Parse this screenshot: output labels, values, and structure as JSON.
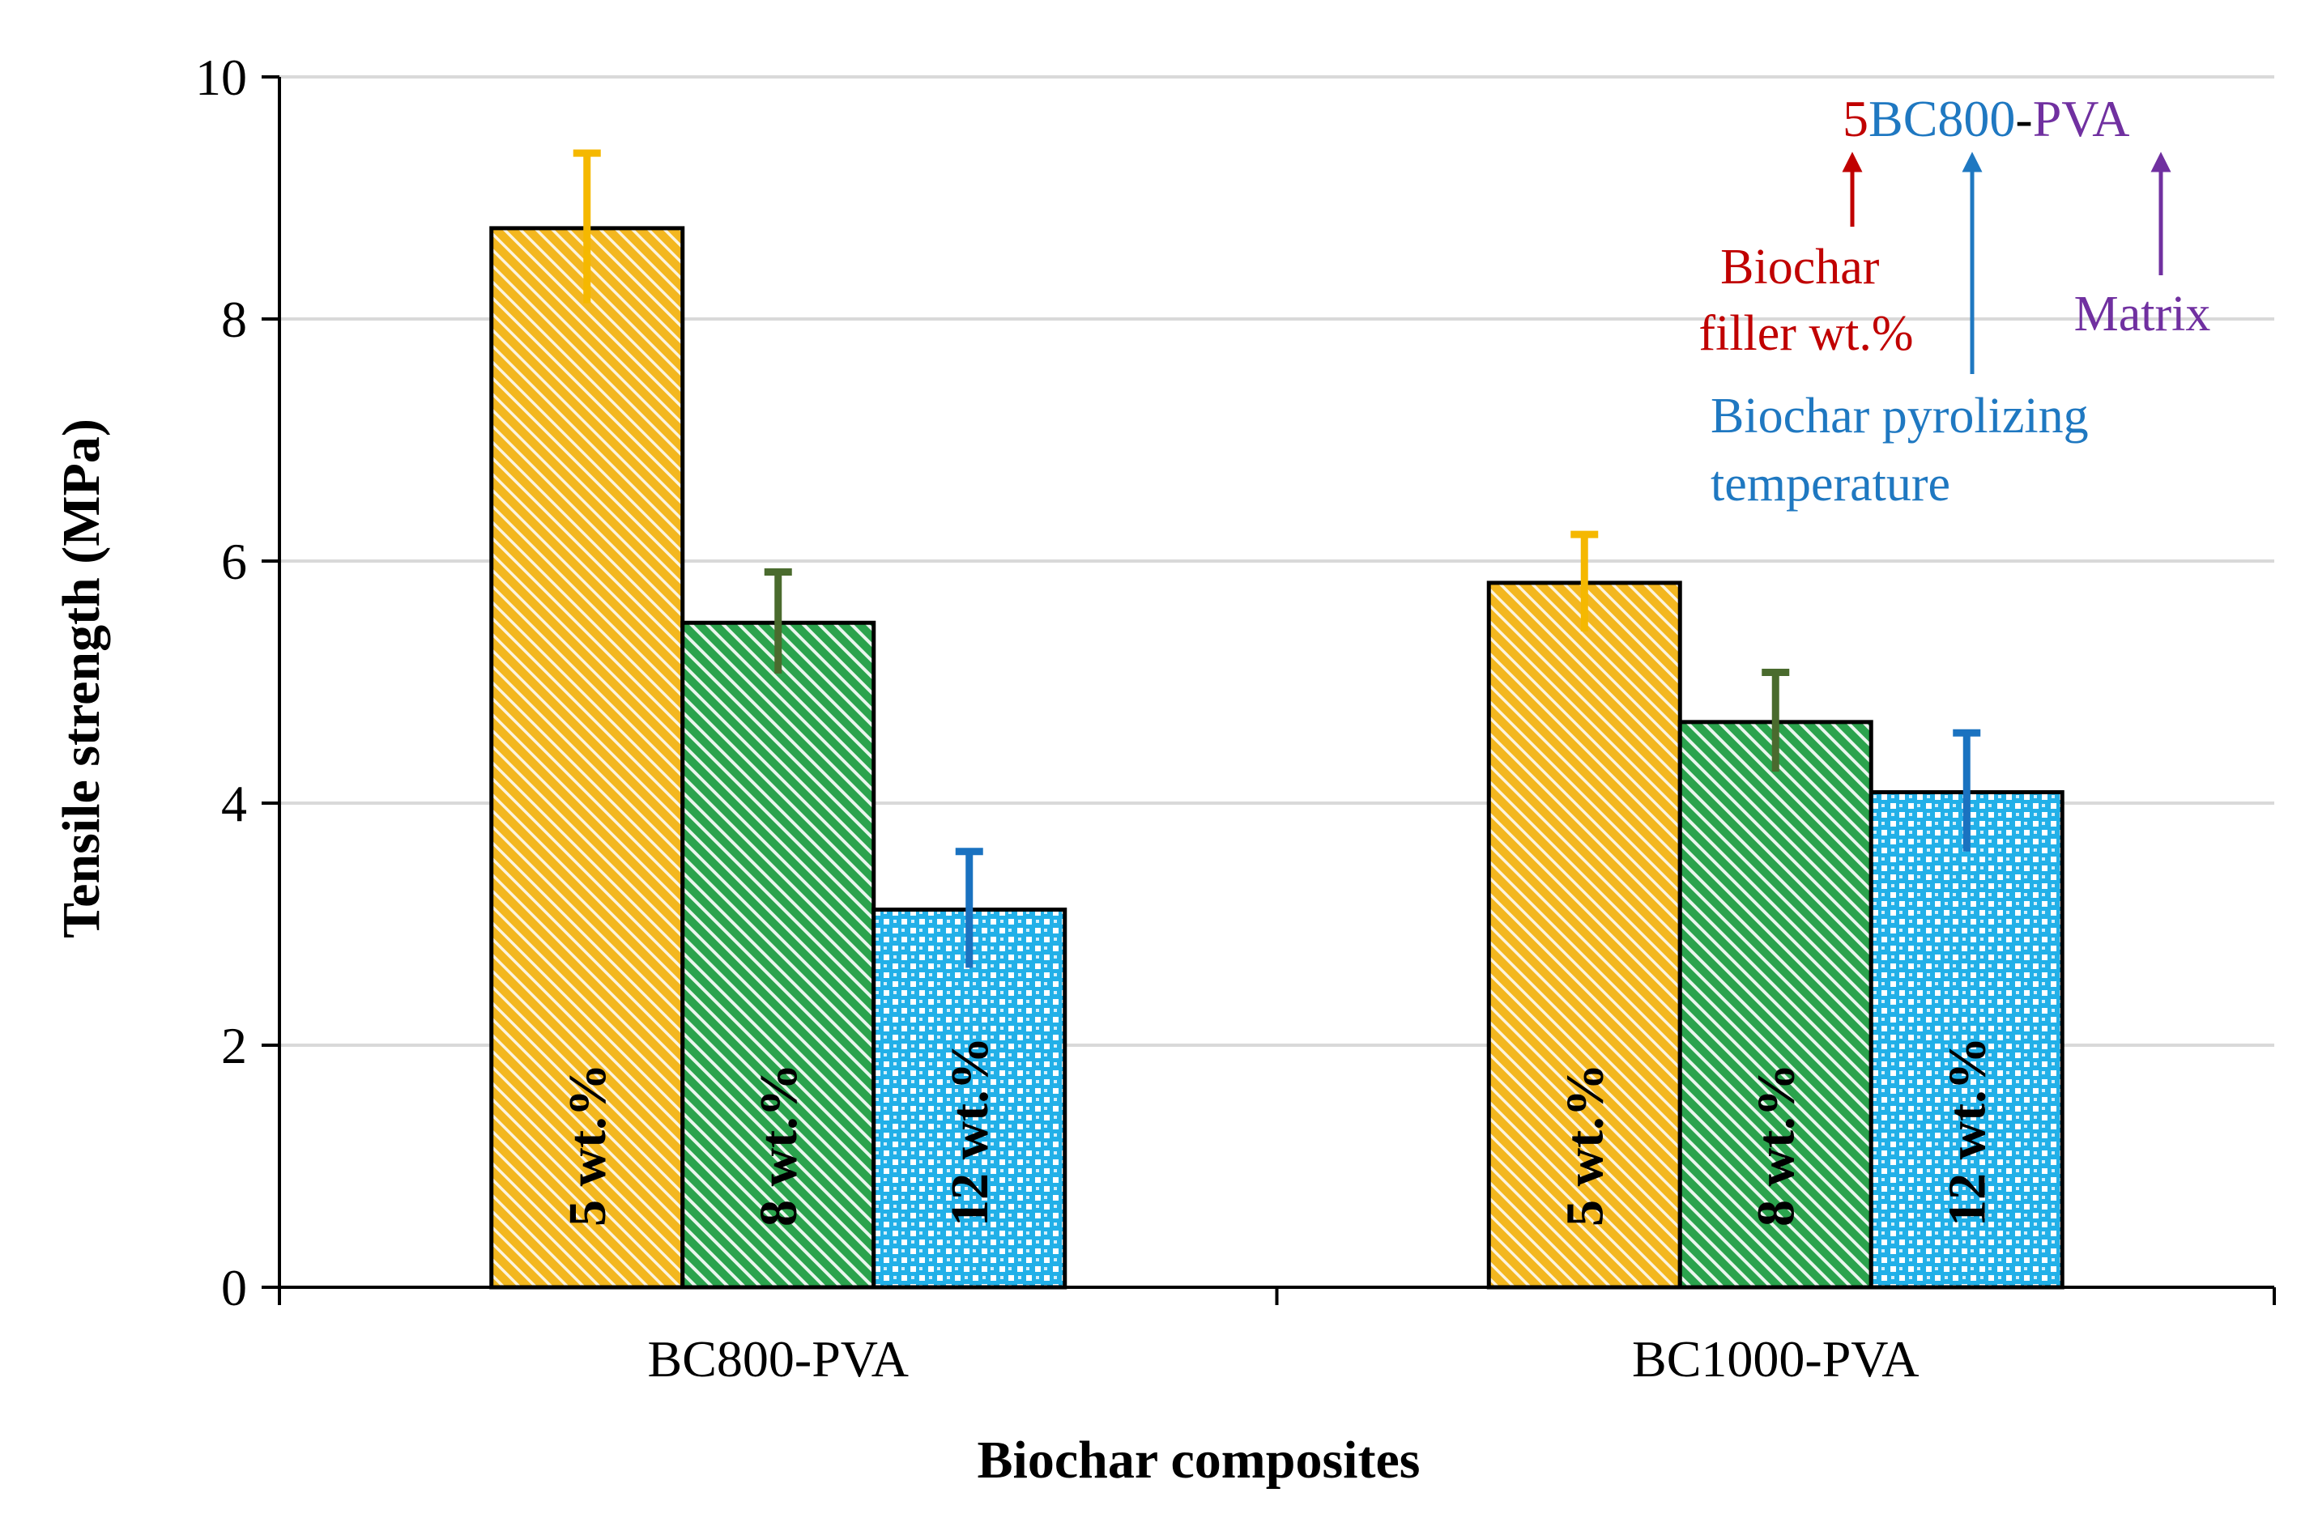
{
  "chart_data": {
    "type": "bar",
    "title": "",
    "xlabel": "Biochar composites",
    "ylabel": "Tensile strength (MPa)",
    "ylim": [
      0,
      10
    ],
    "yticks": [
      "0",
      "2",
      "4",
      "6",
      "8",
      "10"
    ],
    "grid": true,
    "categories": [
      "BC800-PVA",
      "BC1000-PVA"
    ],
    "series": [
      {
        "name": "5 wt.%",
        "values": [
          8.75,
          5.82
        ],
        "errors": [
          0.62,
          0.4
        ],
        "color": "#f3b71f",
        "error_color": "#f5b800",
        "pattern": "diagonal"
      },
      {
        "name": "8 wt.%",
        "values": [
          5.49,
          4.67
        ],
        "errors": [
          0.42,
          0.41
        ],
        "color": "#2ba34d",
        "error_color": "#4a6b2e",
        "pattern": "diagonal"
      },
      {
        "name": "12 wt.%",
        "values": [
          3.12,
          4.09
        ],
        "errors": [
          0.48,
          0.49
        ],
        "color": "#22b0e8",
        "error_color": "#1a72c0",
        "pattern": "checker"
      }
    ]
  },
  "annotation": {
    "label_parts": [
      {
        "text": "5",
        "color": "#c00000"
      },
      {
        "text": "BC800",
        "color": "#1f78c1"
      },
      {
        "text": "-",
        "color": "#000000"
      },
      {
        "text": "PVA",
        "color": "#7030a0"
      }
    ],
    "filler": {
      "lines": [
        "Biochar",
        "filler wt.%"
      ],
      "color": "#c00000"
    },
    "pyrolysis": {
      "lines": [
        "Biochar pyrolizing",
        "temperature"
      ],
      "color": "#1f78c1"
    },
    "matrix": {
      "lines": [
        "Matrix"
      ],
      "color": "#7030a0"
    }
  }
}
